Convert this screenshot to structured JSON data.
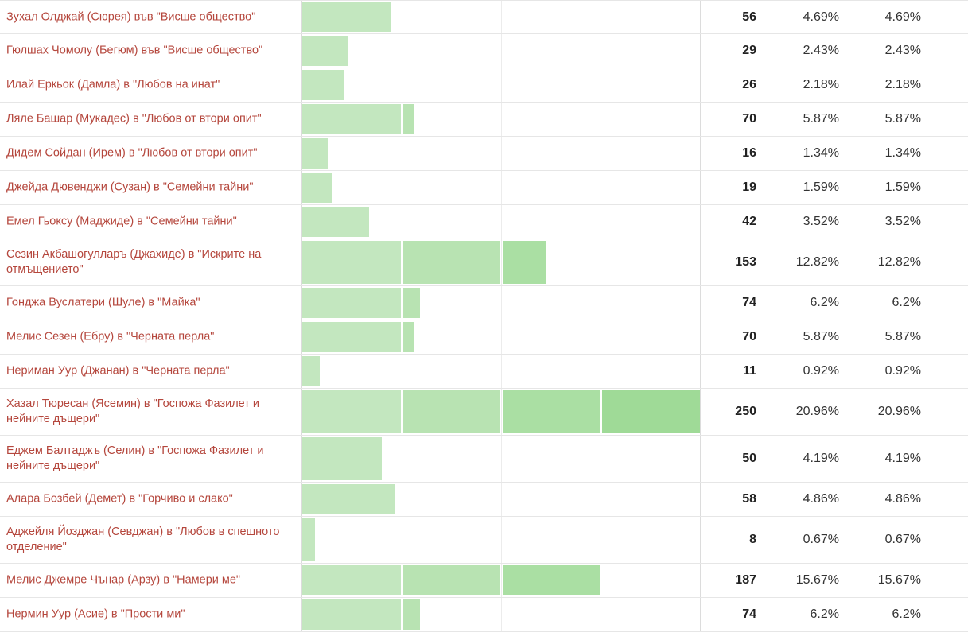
{
  "colors": {
    "label": "#b5473d",
    "bar_shades": [
      "#c3e7bf",
      "#b8e3b2",
      "#aadfa3",
      "#9fda97"
    ]
  },
  "chart_data": {
    "type": "bar",
    "orientation": "horizontal",
    "bar_max": 250,
    "bar_ticks": [
      62.5,
      125,
      187.5
    ],
    "rows": [
      {
        "label": "Зухал Олджай (Сюрея) във \"Висше общество\"",
        "count": 56,
        "pct": "4.69%",
        "pct_valid": "4.69%"
      },
      {
        "label": "Гюлшах Чомолу (Бегюм) във \"Висше общество\"",
        "count": 29,
        "pct": "2.43%",
        "pct_valid": "2.43%"
      },
      {
        "label": "Илай Еркьок (Дамла) в \"Любов на инат\"",
        "count": 26,
        "pct": "2.18%",
        "pct_valid": "2.18%"
      },
      {
        "label": "Ляле Башар (Мукадес) в \"Любов от втори опит\"",
        "count": 70,
        "pct": "5.87%",
        "pct_valid": "5.87%"
      },
      {
        "label": "Дидем Сойдан (Ирем) в \"Любов от втори опит\"",
        "count": 16,
        "pct": "1.34%",
        "pct_valid": "1.34%"
      },
      {
        "label": "Джейда Дювенджи (Сузан) в \"Семейни тайни\"",
        "count": 19,
        "pct": "1.59%",
        "pct_valid": "1.59%"
      },
      {
        "label": "Емел Гьоксу (Маджиде) в \"Семейни тайни\"",
        "count": 42,
        "pct": "3.52%",
        "pct_valid": "3.52%"
      },
      {
        "label": "Сезин Акбашогулларъ (Джахиде) в \"Искрите на отмъщението\"",
        "count": 153,
        "pct": "12.82%",
        "pct_valid": "12.82%"
      },
      {
        "label": "Гонджа Вуслатери (Шуле) в \"Майка\"",
        "count": 74,
        "pct": "6.2%",
        "pct_valid": "6.2%"
      },
      {
        "label": "Мелис Сезен (Ебру) в \"Черната перла\"",
        "count": 70,
        "pct": "5.87%",
        "pct_valid": "5.87%"
      },
      {
        "label": "Нериман Уур (Джанан) в \"Черната перла\"",
        "count": 11,
        "pct": "0.92%",
        "pct_valid": "0.92%"
      },
      {
        "label": "Хазал Тюресан (Ясемин) в \"Госпожа Фазилет и нейните дъщери\"",
        "count": 250,
        "pct": "20.96%",
        "pct_valid": "20.96%"
      },
      {
        "label": "Еджем Балтаджъ (Селин) в \"Госпожа Фазилет и нейните дъщери\"",
        "count": 50,
        "pct": "4.19%",
        "pct_valid": "4.19%"
      },
      {
        "label": "Алара Бозбей (Демет) в \"Горчиво и слако\"",
        "count": 58,
        "pct": "4.86%",
        "pct_valid": "4.86%"
      },
      {
        "label": "Аджейля Йозджан (Севджан) в \"Любов в спешното отделение\"",
        "count": 8,
        "pct": "0.67%",
        "pct_valid": "0.67%"
      },
      {
        "label": "Мелис Джемре Чънар (Арзу) в \"Намери ме\"",
        "count": 187,
        "pct": "15.67%",
        "pct_valid": "15.67%"
      },
      {
        "label": "Нермин Уур (Асие) в \"Прости ми\"",
        "count": 74,
        "pct": "6.2%",
        "pct_valid": "6.2%"
      }
    ]
  }
}
